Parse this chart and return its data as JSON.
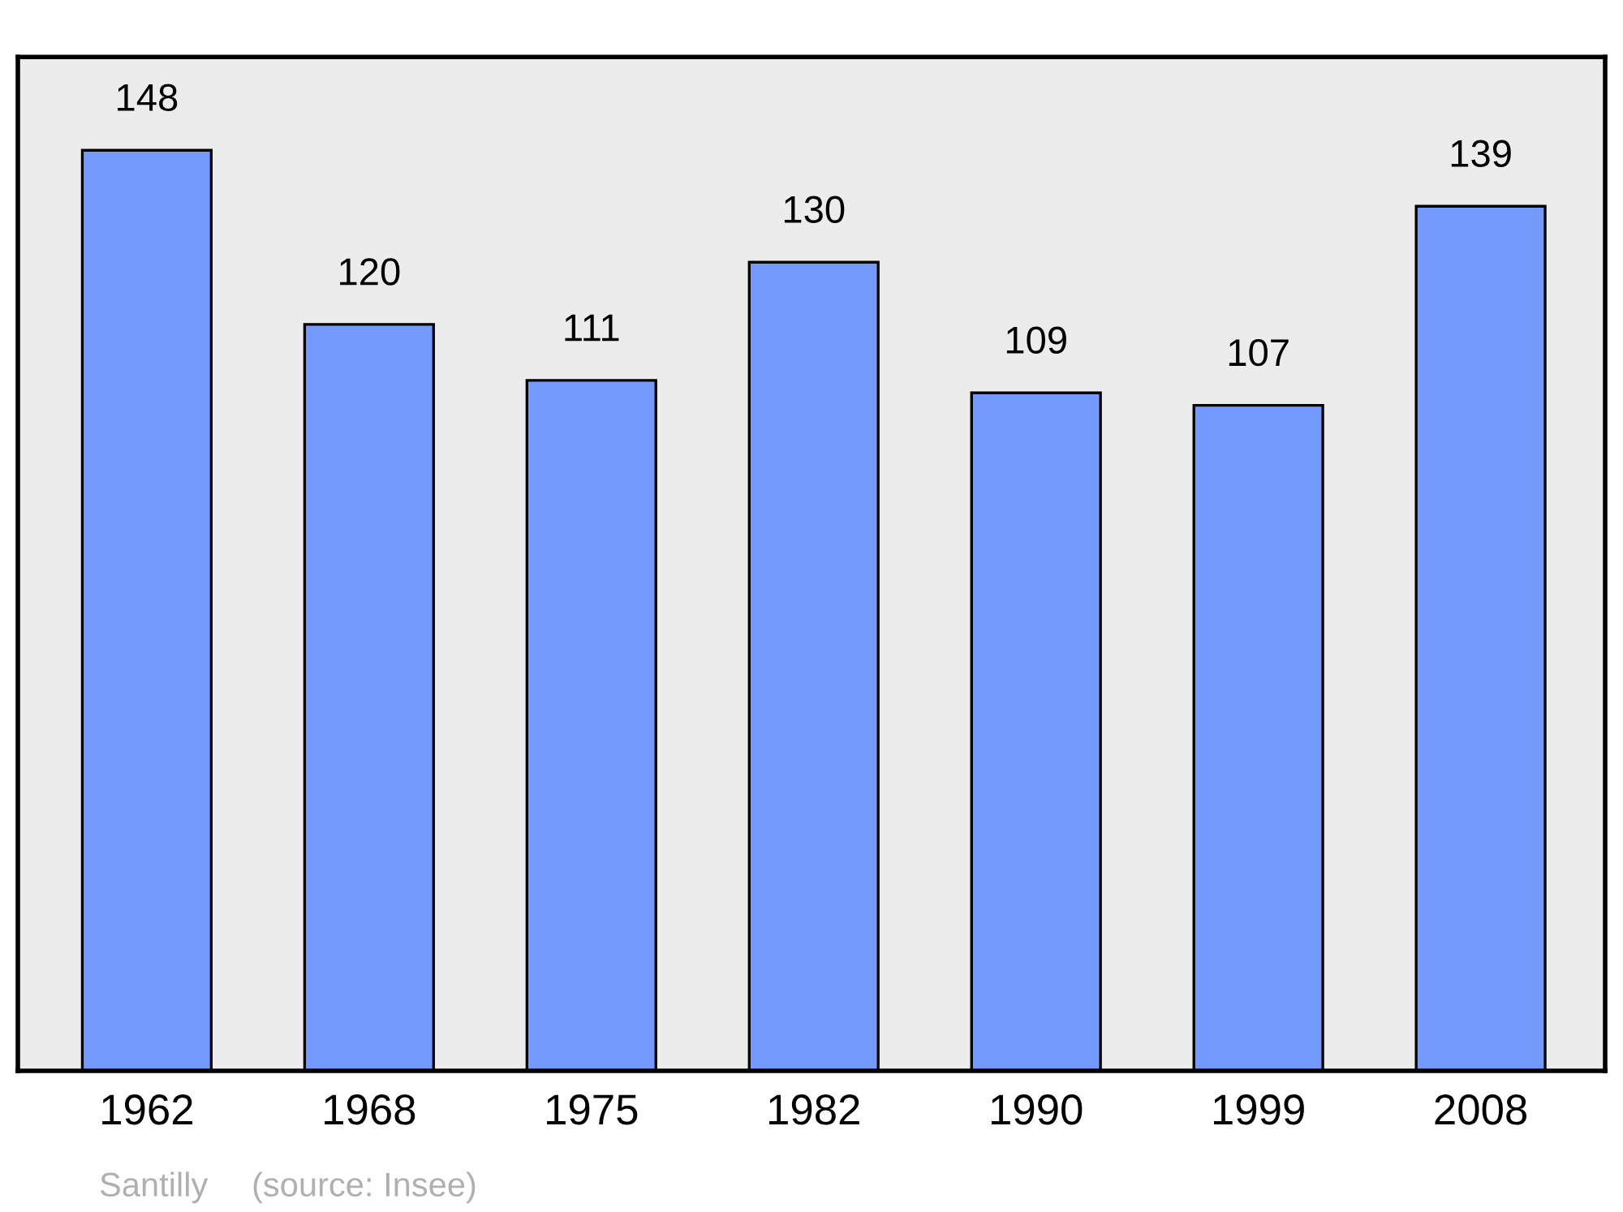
{
  "chart_data": {
    "type": "bar",
    "categories": [
      "1962",
      "1968",
      "1975",
      "1982",
      "1990",
      "1999",
      "2008"
    ],
    "values": [
      148,
      120,
      111,
      130,
      109,
      107,
      139
    ],
    "color": "#7499ff",
    "data_labels": true,
    "ylim": [
      0,
      163
    ],
    "tick_labels": "x",
    "grid": false,
    "annotations": [
      "Santilly",
      "(source: Insee)"
    ]
  }
}
